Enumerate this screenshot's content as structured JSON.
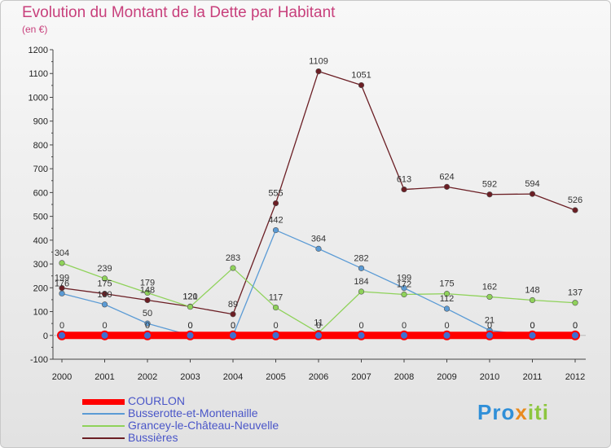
{
  "title": "Evolution du Montant de la Dette par Habitant",
  "subtitle": "(en €)",
  "logo": {
    "part1": "Pro",
    "part2": "x",
    "part3": "iti"
  },
  "chart_data": {
    "type": "line",
    "title": "Evolution du Montant de la Dette par Habitant",
    "subtitle": "(en €)",
    "xlabel": "",
    "ylabel": "",
    "x": [
      "2000",
      "2001",
      "2002",
      "2003",
      "2004",
      "2005",
      "2006",
      "2007",
      "2008",
      "2009",
      "2010",
      "2011",
      "2012"
    ],
    "ylim": [
      -100,
      1200
    ],
    "yticks": [
      -100,
      0,
      100,
      200,
      300,
      400,
      500,
      600,
      700,
      800,
      900,
      1000,
      1100,
      1200
    ],
    "grid": false,
    "legend_position": "bottom-left",
    "series": [
      {
        "name": "COURLON",
        "color": "#ff0000",
        "values": [
          0,
          0,
          0,
          0,
          0,
          0,
          0,
          0,
          0,
          0,
          0,
          0,
          0
        ],
        "labels": [
          "0",
          "0",
          "0",
          "0",
          "0",
          "0",
          "0",
          "0",
          "0",
          "0",
          "0",
          "0",
          "0"
        ]
      },
      {
        "name": "Busserotte-et-Montenaille",
        "color": "#5b9bd5",
        "values": [
          176,
          130,
          50,
          0,
          0,
          442,
          364,
          282,
          199,
          112,
          21,
          0,
          0
        ],
        "labels": [
          "176",
          "130",
          "50",
          "0",
          "0",
          "442",
          "364",
          "282",
          "199",
          "112",
          "21",
          "0",
          "0"
        ]
      },
      {
        "name": "Grancey-le-Château-Neuvelle",
        "color": "#8fd25a",
        "values": [
          304,
          239,
          179,
          120,
          283,
          117,
          11,
          184,
          172,
          175,
          162,
          148,
          137
        ],
        "labels": [
          "304",
          "239",
          "179",
          "120",
          "283",
          "117",
          "11",
          "184",
          "172",
          "175",
          "162",
          "148",
          "137"
        ]
      },
      {
        "name": "Bussières",
        "color": "#6b1e24",
        "values": [
          199,
          175,
          148,
          121,
          89,
          555,
          1109,
          1051,
          613,
          624,
          592,
          594,
          526
        ],
        "labels": [
          "199",
          "175",
          "148",
          "121",
          "89",
          "555",
          "1109",
          "1051",
          "613",
          "624",
          "592",
          "594",
          "526"
        ]
      }
    ]
  }
}
